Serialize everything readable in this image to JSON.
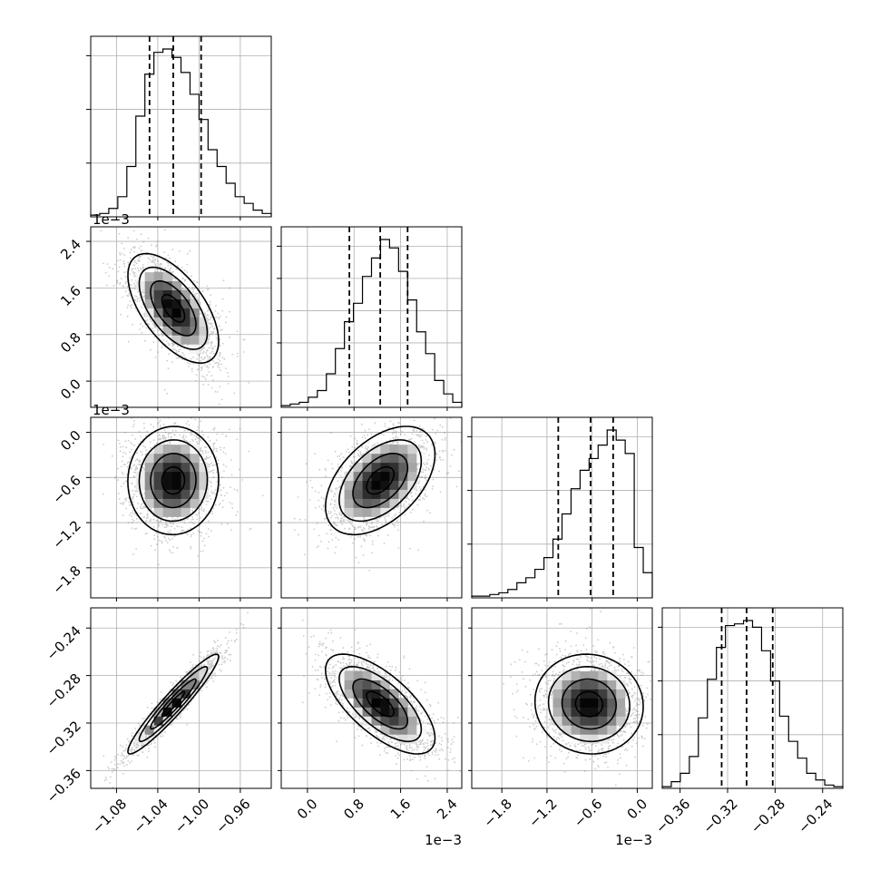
{
  "chart_data": {
    "type": "corner",
    "title": "",
    "parameters": [
      {
        "index": 0,
        "label": "",
        "range": [
          -1.105,
          -0.93
        ],
        "ticks": [
          -1.08,
          -1.04,
          -1.0,
          -0.96
        ],
        "tick_labels": [
          "−1.08",
          "−1.04",
          "−1.00",
          "−0.96"
        ],
        "offset_label": "",
        "quantiles": [
          -1.048,
          -1.025,
          -0.998
        ],
        "mean": -1.025,
        "sd": 0.022
      },
      {
        "index": 1,
        "label": "",
        "range": [
          -0.00045,
          0.00265
        ],
        "ticks": [
          0.0,
          0.0008,
          0.0016,
          0.0024
        ],
        "tick_labels": [
          "0.0",
          "0.8",
          "1.6",
          "2.4"
        ],
        "offset_label": "1e−3",
        "quantiles": [
          0.00072,
          0.00125,
          0.00172
        ],
        "mean": 0.00125,
        "sd": 0.00047
      },
      {
        "index": 2,
        "label": "",
        "range": [
          -0.0022,
          0.0002
        ],
        "ticks": [
          -0.0018,
          -0.0012,
          -0.0006,
          0.0
        ],
        "tick_labels": [
          "−1.8",
          "−1.2",
          "−0.6",
          "0.0"
        ],
        "offset_label": "1e−3",
        "quantiles": [
          -0.00105,
          -0.00062,
          -0.00032
        ],
        "mean": -0.00064,
        "sd": 0.00036
      },
      {
        "index": 3,
        "label": "",
        "range": [
          -0.375,
          -0.223
        ],
        "ticks": [
          -0.36,
          -0.32,
          -0.28,
          -0.24
        ],
        "tick_labels": [
          "−0.36",
          "−0.32",
          "−0.28",
          "−0.24"
        ],
        "offset_label": "",
        "quantiles": [
          -0.325,
          -0.304,
          -0.282
        ],
        "mean": -0.304,
        "sd": 0.021
      }
    ],
    "histograms": [
      {
        "param": 0,
        "nbins": 20,
        "counts": [
          1,
          2,
          5,
          12,
          30,
          60,
          85,
          98,
          100,
          95,
          86,
          73,
          58,
          40,
          30,
          20,
          12,
          8,
          4,
          2
        ],
        "yticks_shown": 3
      },
      {
        "param": 1,
        "nbins": 20,
        "counts": [
          1,
          2,
          3,
          6,
          10,
          20,
          35,
          51,
          62,
          78,
          89,
          100,
          95,
          81,
          64,
          45,
          32,
          16,
          8,
          3
        ],
        "yticks_shown": 5
      },
      {
        "param": 2,
        "nbins": 20,
        "counts": [
          1,
          1,
          2,
          3,
          5,
          9,
          12,
          17,
          24,
          35,
          50,
          65,
          76,
          83,
          91,
          100,
          94,
          86,
          30,
          15
        ],
        "yticks_shown": 3
      },
      {
        "param": 3,
        "nbins": 20,
        "counts": [
          1,
          4,
          9,
          19,
          42,
          65,
          84,
          97,
          98,
          100,
          96,
          82,
          64,
          43,
          28,
          18,
          9,
          5,
          2,
          1
        ],
        "yticks_shown": 3
      }
    ],
    "correlations": [
      {
        "x": 0,
        "y": 1,
        "rho": -0.6
      },
      {
        "x": 0,
        "y": 2,
        "rho": 0.02
      },
      {
        "x": 1,
        "y": 2,
        "rho": 0.48
      },
      {
        "x": 0,
        "y": 3,
        "rho": 0.95
      },
      {
        "x": 1,
        "y": 3,
        "rho": -0.68
      },
      {
        "x": 2,
        "y": 3,
        "rho": -0.05
      }
    ],
    "contour_levels_sigma": [
      0.5,
      1.0,
      1.5,
      2.0
    ],
    "quantile_line_style": "dashed",
    "grid": true,
    "colors": {
      "histogram": "#000000",
      "density": "#000000",
      "points": "#6e6e6e",
      "grid": "#b0b0b0"
    }
  }
}
